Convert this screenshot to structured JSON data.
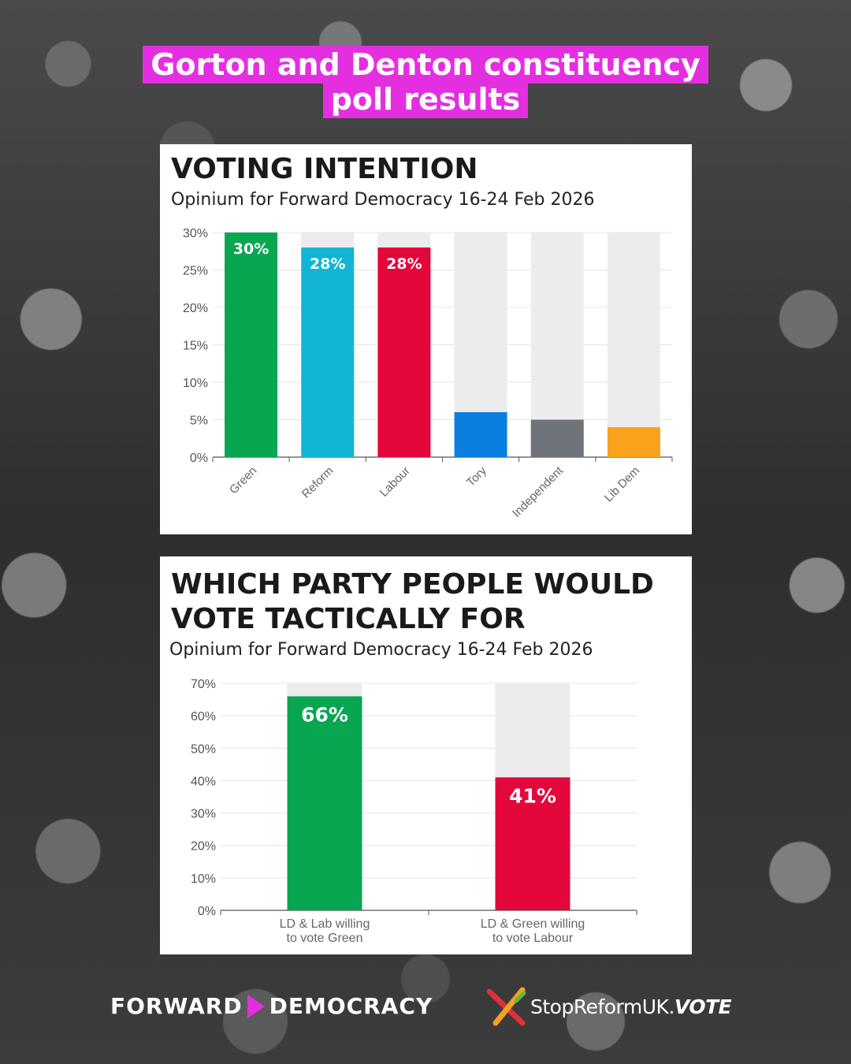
{
  "headline": {
    "line1": "Gorton and Denton constituency",
    "line2": "poll results"
  },
  "colors": {
    "accent": "#e42fe0",
    "Green": "#08a651",
    "Reform": "#12b5d3",
    "Labour": "#e3073c",
    "Tory": "#0b7fe0",
    "Independent": "#6e747a",
    "Lib Dem": "#fba21d",
    "bar_bg": "#ececee"
  },
  "chart_data": [
    {
      "type": "bar",
      "title": "VOTING INTENTION",
      "subtitle": "Opinium for Forward Democracy 16-24 Feb 2026",
      "categories": [
        "Green",
        "Reform",
        "Labour",
        "Tory",
        "Independent",
        "Lib Dem"
      ],
      "values": [
        30,
        28,
        28,
        6,
        5,
        4
      ],
      "data_labels": [
        "30%",
        "28%",
        "28%",
        "",
        "",
        ""
      ],
      "ylim": [
        0,
        30
      ],
      "yticks": [
        "0%",
        "5%",
        "10%",
        "15%",
        "20%",
        "25%",
        "30%"
      ],
      "xlabel": "",
      "ylabel": "",
      "grid": true,
      "legend": "none"
    },
    {
      "type": "bar",
      "title": "WHICH PARTY PEOPLE WOULD VOTE TACTICALLY FOR",
      "subtitle": "Opinium for Forward Democracy 16-24 Feb 2026",
      "categories": [
        "LD & Lab willing to vote Green",
        "LD & Green willing to vote Labour"
      ],
      "category_lines": [
        [
          "LD & Lab willing",
          "to vote Green"
        ],
        [
          "LD & Green willing",
          "to vote Labour"
        ]
      ],
      "values": [
        66,
        41
      ],
      "data_labels": [
        "66%",
        "41%"
      ],
      "bar_colors": [
        "Green",
        "Labour"
      ],
      "ylim": [
        0,
        70
      ],
      "yticks": [
        "0%",
        "10%",
        "20%",
        "30%",
        "40%",
        "50%",
        "60%",
        "70%"
      ],
      "xlabel": "",
      "ylabel": "",
      "grid": true,
      "legend": "none"
    }
  ],
  "footer": {
    "fd_left": "FORWARD",
    "fd_right": "DEMOCRACY",
    "sr_main": "StopReformUK.",
    "sr_bold": "VOTE"
  }
}
